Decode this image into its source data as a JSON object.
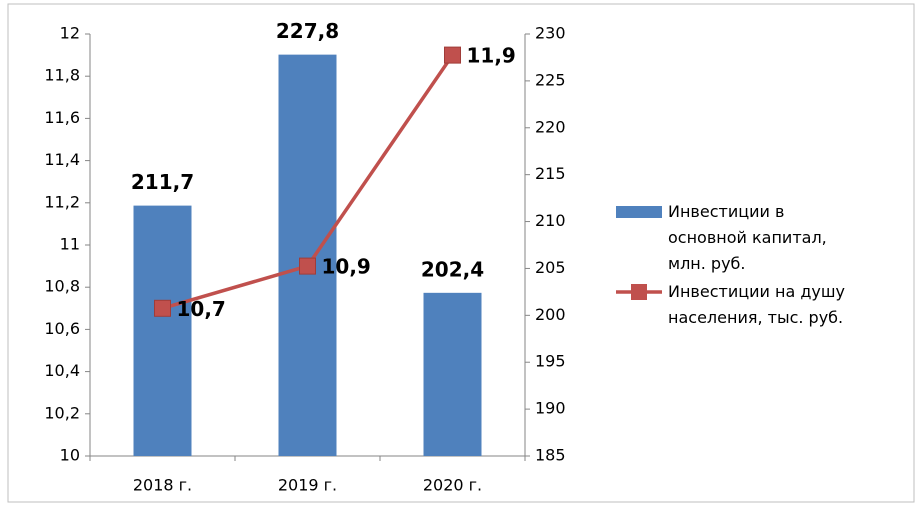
{
  "chart_data": {
    "type": "bar_line",
    "categories": [
      "2018 г.",
      "2019 г.",
      "2020 г."
    ],
    "series": [
      {
        "name": "Инвестиции в основной капитал, млн. руб.",
        "type": "bar",
        "axis": "y2",
        "color": "#4f81bd",
        "values": [
          211.7,
          227.8,
          202.4
        ],
        "value_labels": [
          "211,7",
          "227,8",
          "202,4"
        ]
      },
      {
        "name": "Инвестиции на душу населения, тыс. руб.",
        "type": "line",
        "axis": "y",
        "color": "#c0504d",
        "values": [
          10.7,
          10.9,
          11.9
        ],
        "value_labels": [
          "10,7",
          "10,9",
          "11,9"
        ]
      }
    ],
    "ylim": [
      10,
      12
    ],
    "yticks": [
      10,
      {
        "value": 10.2,
        "label": "10,2"
      },
      {
        "value": 10.4,
        "label": "10,4"
      },
      {
        "value": 10.6,
        "label": "10,6"
      },
      {
        "value": 10.8,
        "label": "10,8"
      },
      11,
      {
        "value": 11.2,
        "label": "11,2"
      },
      {
        "value": 11.4,
        "label": "11,4"
      },
      {
        "value": 11.6,
        "label": "11,6"
      },
      {
        "value": 11.8,
        "label": "11,8"
      },
      12
    ],
    "y2lim": [
      185,
      230
    ],
    "y2ticks": [
      185,
      190,
      195,
      200,
      205,
      210,
      215,
      220,
      225,
      230
    ],
    "grid": false,
    "legend": "right"
  }
}
